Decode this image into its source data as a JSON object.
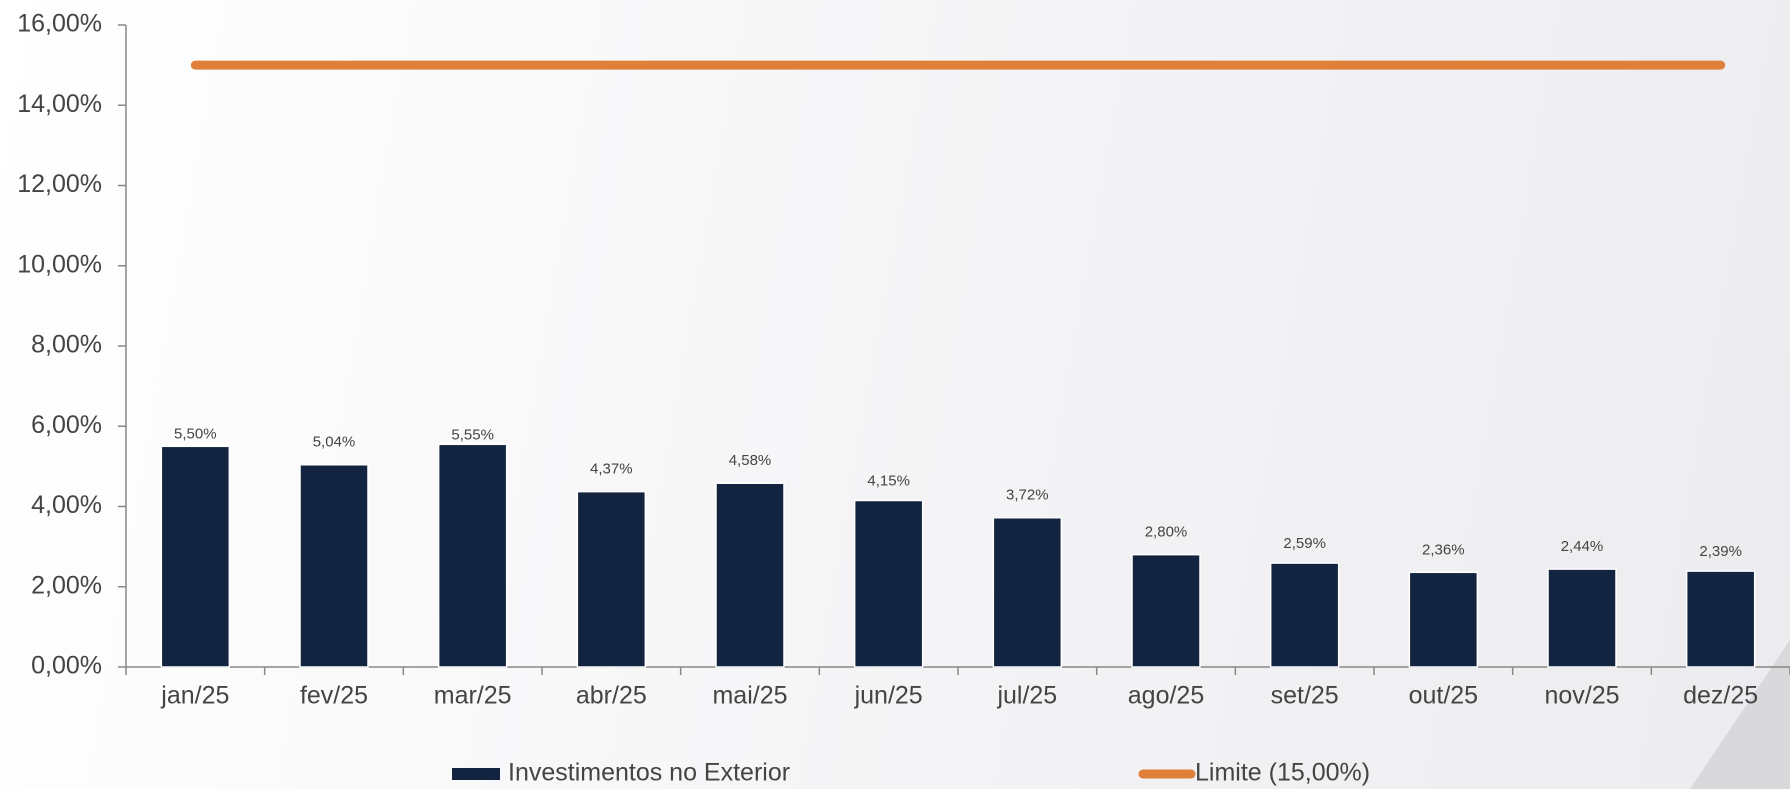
{
  "chart_data": {
    "type": "bar",
    "categories": [
      "jan/25",
      "fev/25",
      "mar/25",
      "abr/25",
      "mai/25",
      "jun/25",
      "jul/25",
      "ago/25",
      "set/25",
      "out/25",
      "nov/25",
      "dez/25"
    ],
    "series": [
      {
        "name": "Investimentos no Exterior",
        "type": "bar",
        "color": "#12243f",
        "values": [
          5.5,
          5.04,
          5.55,
          4.37,
          4.58,
          4.15,
          3.72,
          2.8,
          2.59,
          2.36,
          2.44,
          2.39
        ],
        "value_labels": [
          "5,50%",
          "5,04%",
          "5,55%",
          "4,37%",
          "4,58%",
          "4,15%",
          "3,72%",
          "2,80%",
          "2,59%",
          "2,36%",
          "2,44%",
          "2,39%"
        ]
      },
      {
        "name": "Limite (15,00%)",
        "type": "line",
        "color": "#e07f3a",
        "values": [
          15,
          15,
          15,
          15,
          15,
          15,
          15,
          15,
          15,
          15,
          15,
          15
        ]
      }
    ],
    "ylim": [
      0,
      16
    ],
    "yticks": [
      {
        "value": 0,
        "label": "0,00%"
      },
      {
        "value": 2,
        "label": "2,00%"
      },
      {
        "value": 4,
        "label": "4,00%"
      },
      {
        "value": 6,
        "label": "6,00%"
      },
      {
        "value": 8,
        "label": "8,00%"
      },
      {
        "value": 10,
        "label": "10,00%"
      },
      {
        "value": 12,
        "label": "12,00%"
      },
      {
        "value": 14,
        "label": "14,00%"
      },
      {
        "value": 16,
        "label": "16,00%"
      }
    ],
    "grid": false,
    "legend": "bottom"
  }
}
